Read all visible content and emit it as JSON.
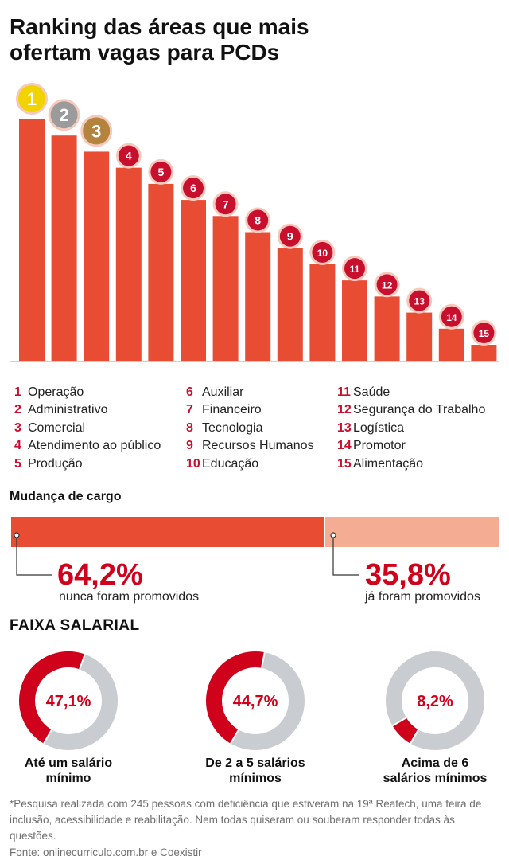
{
  "title_line1": "Ranking das áreas que mais",
  "title_line2": "ofertam vagas para PCDs",
  "chart_data": [
    {
      "type": "bar",
      "title": "Ranking das áreas que mais ofertam vagas para PCDs",
      "categories": [
        "1",
        "2",
        "3",
        "4",
        "5",
        "6",
        "7",
        "8",
        "9",
        "10",
        "11",
        "12",
        "13",
        "14",
        "15"
      ],
      "values": [
        15,
        14,
        13,
        12,
        11,
        10,
        9,
        8,
        7,
        6,
        5,
        4,
        3,
        2,
        1
      ],
      "note": "Bar heights show rank order only; no numeric axis is printed. Values are relative (rank 1 tallest).",
      "medal_colors": {
        "1": "#f1d302",
        "2": "#9b9b9b",
        "3": "#b4843f"
      },
      "bar_color": "#e84c33",
      "badge_color": "#c8102e"
    },
    {
      "type": "bar",
      "title": "Mudança de cargo",
      "series": [
        {
          "name": "nunca foram promovidos",
          "value": 64.2,
          "label": "64,2%",
          "color": "#e84c33"
        },
        {
          "name": "já foram promovidos",
          "value": 35.8,
          "label": "35,8%",
          "color": "#f4ad93"
        }
      ]
    },
    {
      "type": "pie",
      "title": "FAIXA SALARIAL",
      "slices": [
        {
          "name": "Até um salário mínimo",
          "value": 47.1,
          "label": "47,1%"
        },
        {
          "name": "De 2 a 5 salários mínimos",
          "value": 44.7,
          "label": "44,7%"
        },
        {
          "name": "Acima de 6 salários mínimos",
          "value": 8.2,
          "label": "8,2%"
        }
      ],
      "highlight_color": "#d0021b",
      "rest_color": "#c9cdd1"
    }
  ],
  "legend": [
    {
      "rank": "1",
      "name": "Operação"
    },
    {
      "rank": "2",
      "name": "Administrativo"
    },
    {
      "rank": "3",
      "name": "Comercial"
    },
    {
      "rank": "4",
      "name": "Atendimento ao público"
    },
    {
      "rank": "5",
      "name": "Produção"
    },
    {
      "rank": "6",
      "name": "Auxiliar"
    },
    {
      "rank": "7",
      "name": "Financeiro"
    },
    {
      "rank": "8",
      "name": "Tecnologia"
    },
    {
      "rank": "9",
      "name": "Recursos Humanos"
    },
    {
      "rank": "10",
      "name": "Educação"
    },
    {
      "rank": "11",
      "name": "Saúde"
    },
    {
      "rank": "12",
      "name": "Segurança do Trabalho"
    },
    {
      "rank": "13",
      "name": "Logística"
    },
    {
      "rank": "14",
      "name": "Promotor"
    },
    {
      "rank": "15",
      "name": "Alimentação"
    }
  ],
  "promotion": {
    "title": "Mudança de cargo",
    "never_pct": "64,2%",
    "never_caption": "nunca foram promovidos",
    "already_pct": "35,8%",
    "already_caption": "já foram promovidos"
  },
  "salary": {
    "title": "FAIXA SALARIAL",
    "items": [
      {
        "pct": "47,1%",
        "line1": "Até um salário",
        "line2": "mínimo"
      },
      {
        "pct": "44,7%",
        "line1": "De 2 a 5 salários",
        "line2": "mínimos"
      },
      {
        "pct": "8,2%",
        "line1": "Acima de 6",
        "line2": "salários mínimos"
      }
    ]
  },
  "footnote": "*Pesquisa realizada com 245 pessoas com deficiência que estiveram na 19ª Reatech, uma feira de inclusão, acessibilidade e reabilitação. Nem todas quiseram ou souberam responder todas às questões.",
  "source": "Fonte: onlinecurriculo.com.br e Coexistir"
}
